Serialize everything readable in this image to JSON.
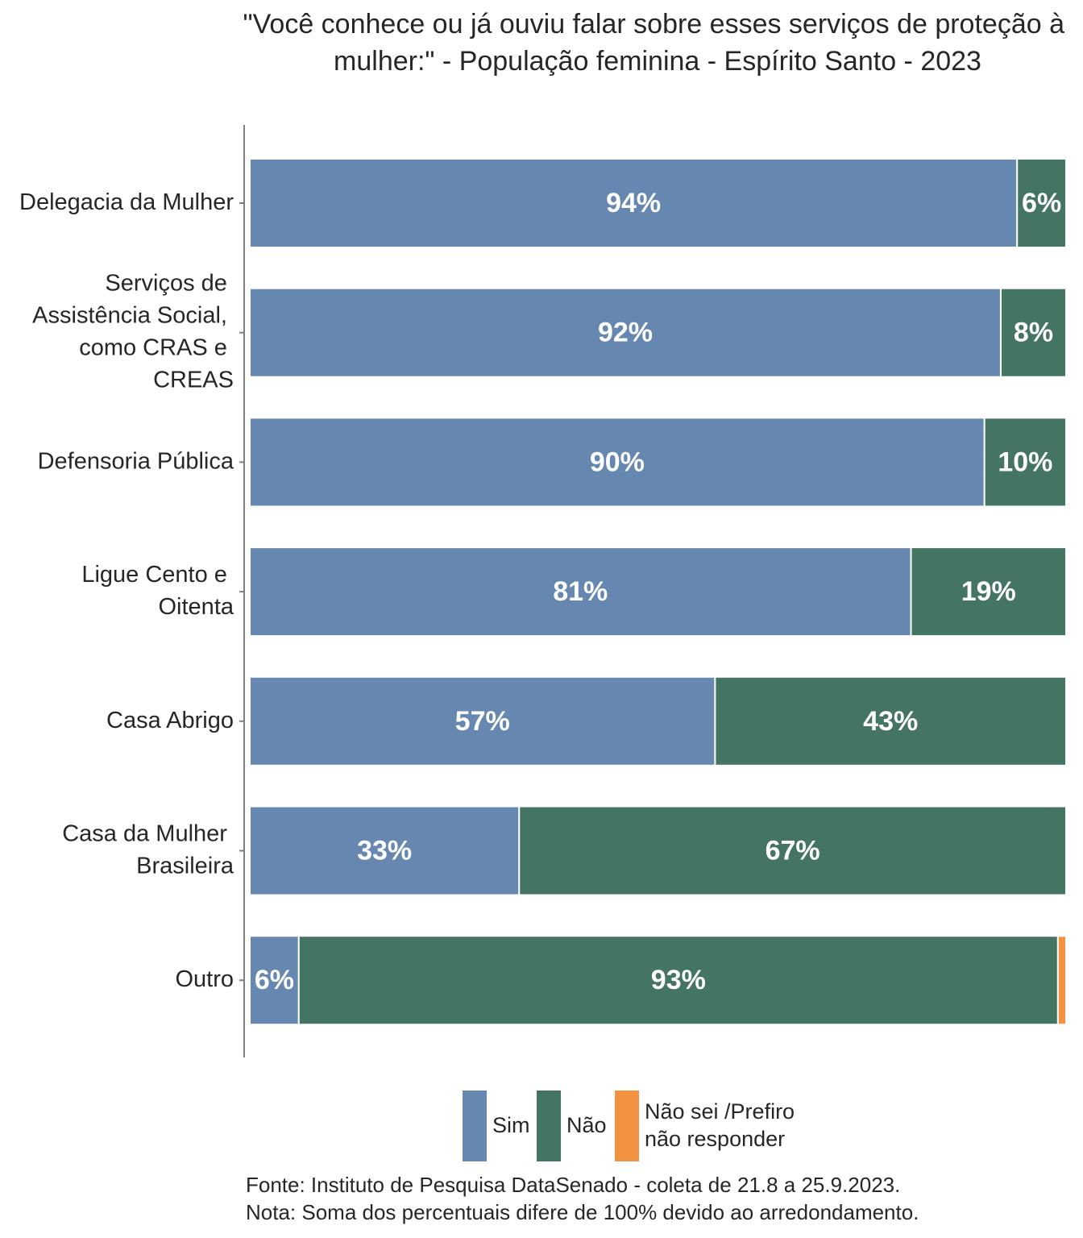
{
  "chart_data": {
    "type": "stacked_barh",
    "title": "\"Você conhece ou já ouviu falar sobre esses serviços de proteção à mulher:\" - População feminina - Espírito Santo - 2023",
    "categories": [
      "Delegacia da Mulher",
      "Serviços de Assistência Social, como CRAS e CREAS",
      "Defensoria Pública",
      "Ligue Cento e Oitenta",
      "Casa Abrigo",
      "Casa da Mulher Brasileira",
      "Outro"
    ],
    "series": [
      {
        "name": "Sim",
        "color": "#6688b0",
        "values": [
          94,
          92,
          90,
          81,
          57,
          33,
          6
        ],
        "value_labels": [
          "94%",
          "92%",
          "90%",
          "81%",
          "57%",
          "33%",
          "6%"
        ]
      },
      {
        "name": "Não",
        "color": "#447563",
        "values": [
          6,
          8,
          10,
          19,
          43,
          67,
          93
        ],
        "value_labels": [
          "6%",
          "8%",
          "10%",
          "19%",
          "43%",
          "67%",
          "93%"
        ]
      },
      {
        "name": "Não sei /Prefiro não responder",
        "color": "#f39240",
        "values": [
          0,
          0,
          0,
          0,
          0,
          0,
          1
        ]
      }
    ],
    "xlim": [
      0,
      100
    ],
    "source": "Fonte: Instituto de Pesquisa DataSenado - coleta de 21.8 a 25.9.2023.",
    "note": "Nota: Soma dos percentuais difere de 100% devido ao arredondamento."
  }
}
